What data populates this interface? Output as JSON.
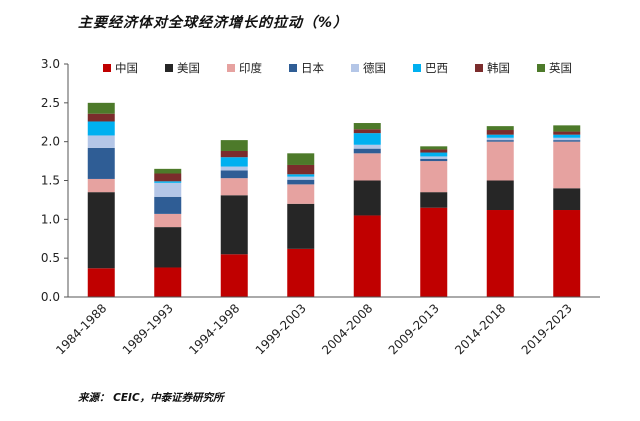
{
  "chart_data": {
    "type": "bar",
    "stacked": true,
    "title": "主要经济体对全球经济增长的拉动（%）",
    "source": "来源： CEIC，中泰证券研究所",
    "categories": [
      "1984-1988",
      "1989-1993",
      "1994-1998",
      "1999-2003",
      "2004-2008",
      "2009-2013",
      "2014-2018",
      "2019-2023"
    ],
    "ylim": [
      0,
      3.0
    ],
    "yticks": [
      "0.0",
      "0.5",
      "1.0",
      "1.5",
      "2.0",
      "2.5",
      "3.0"
    ],
    "legend_position": "top",
    "series": [
      {
        "name": "中国",
        "color": "#c00000",
        "values": [
          0.37,
          0.38,
          0.55,
          0.62,
          1.05,
          1.15,
          1.12,
          1.12
        ]
      },
      {
        "name": "美国",
        "color": "#262626",
        "values": [
          0.98,
          0.52,
          0.76,
          0.58,
          0.45,
          0.2,
          0.38,
          0.28
        ]
      },
      {
        "name": "印度",
        "color": "#e6a2a0",
        "values": [
          0.17,
          0.17,
          0.22,
          0.25,
          0.35,
          0.4,
          0.5,
          0.6
        ]
      },
      {
        "name": "日本",
        "color": "#2f5d95",
        "values": [
          0.4,
          0.22,
          0.1,
          0.06,
          0.06,
          0.03,
          0.02,
          0.02
        ]
      },
      {
        "name": "德国",
        "color": "#b4c6e7",
        "values": [
          0.16,
          0.18,
          0.05,
          0.04,
          0.05,
          0.03,
          0.03,
          0.03
        ]
      },
      {
        "name": "巴西",
        "color": "#00b0f0",
        "values": [
          0.18,
          0.02,
          0.12,
          0.03,
          0.15,
          0.05,
          0.04,
          0.04
        ]
      },
      {
        "name": "韩国",
        "color": "#7b2c2c",
        "values": [
          0.1,
          0.1,
          0.08,
          0.12,
          0.05,
          0.04,
          0.06,
          0.04
        ]
      },
      {
        "name": "英国",
        "color": "#4d7a2a",
        "values": [
          0.14,
          0.06,
          0.14,
          0.15,
          0.08,
          0.04,
          0.05,
          0.08
        ]
      }
    ]
  }
}
